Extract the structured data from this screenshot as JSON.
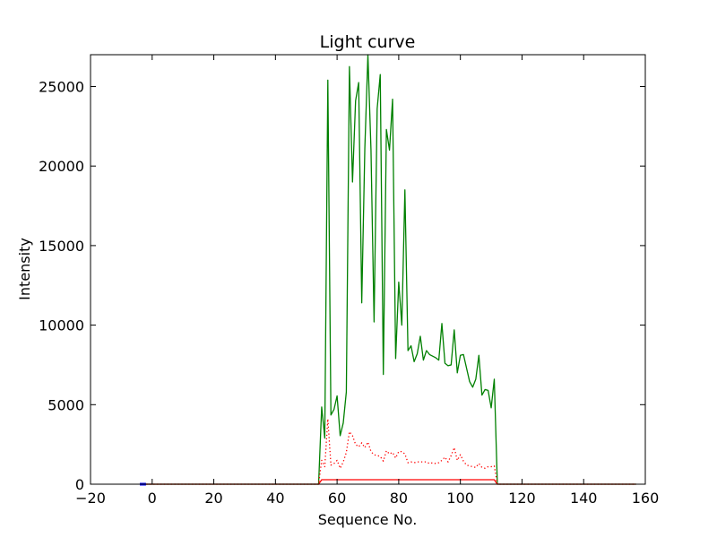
{
  "chart_data": {
    "type": "line",
    "title": "Light curve",
    "xlabel": "Sequence No.",
    "ylabel": "Intensity",
    "xlim": [
      -20,
      160
    ],
    "ylim": [
      0,
      27000
    ],
    "xticks": [
      -20,
      0,
      20,
      40,
      60,
      80,
      100,
      120,
      140,
      160
    ],
    "yticks": [
      0,
      5000,
      10000,
      15000,
      20000,
      25000
    ],
    "xtick_labels": [
      "−20",
      "0",
      "20",
      "40",
      "60",
      "80",
      "100",
      "120",
      "140",
      "160"
    ],
    "ytick_labels": [
      "0",
      "5000",
      "10000",
      "15000",
      "20000",
      "25000"
    ],
    "grid": false,
    "legend": null,
    "series": [
      {
        "color": "#008000",
        "style": "solid",
        "x": [
          -3,
          54,
          55,
          56,
          57,
          58,
          59,
          60,
          61,
          62,
          63,
          64,
          65,
          66,
          67,
          68,
          69,
          70,
          71,
          72,
          73,
          74,
          75,
          76,
          77,
          78,
          79,
          80,
          81,
          82,
          83,
          84,
          85,
          86,
          87,
          88,
          89,
          90,
          91,
          92,
          93,
          94,
          95,
          96,
          97,
          98,
          99,
          100,
          101,
          102,
          103,
          104,
          105,
          106,
          107,
          108,
          109,
          110,
          111,
          112,
          157
        ],
        "y": [
          0,
          0,
          4850,
          2900,
          25400,
          4350,
          4700,
          5550,
          3050,
          3850,
          5800,
          26250,
          19000,
          24100,
          25250,
          11400,
          21100,
          27000,
          21000,
          10200,
          23600,
          25750,
          6900,
          22300,
          21000,
          24200,
          7900,
          12700,
          10000,
          18500,
          8400,
          8700,
          7700,
          8200,
          9300,
          7800,
          8400,
          8150,
          8050,
          7950,
          7800,
          10100,
          7600,
          7450,
          7500,
          9700,
          7000,
          8100,
          8150,
          7300,
          6450,
          6100,
          6600,
          8100,
          5600,
          5950,
          5900,
          4800,
          6600,
          0,
          0
        ]
      },
      {
        "color": "#ff0000",
        "style": "dotted",
        "x": [
          -3,
          54,
          55,
          56,
          57,
          58,
          59,
          60,
          61,
          62,
          63,
          64,
          65,
          66,
          67,
          68,
          69,
          70,
          71,
          72,
          73,
          74,
          75,
          76,
          77,
          78,
          79,
          80,
          81,
          82,
          83,
          84,
          85,
          86,
          87,
          88,
          89,
          90,
          91,
          92,
          93,
          94,
          95,
          96,
          97,
          98,
          99,
          100,
          101,
          102,
          103,
          104,
          105,
          106,
          107,
          108,
          109,
          110,
          111,
          112,
          157
        ],
        "y": [
          0,
          0,
          1500,
          1100,
          4100,
          1200,
          1300,
          1500,
          1000,
          1400,
          2000,
          3300,
          3050,
          2500,
          2350,
          2600,
          2300,
          2650,
          2050,
          1850,
          1800,
          1750,
          1450,
          2100,
          1900,
          2000,
          1650,
          2050,
          2050,
          1900,
          1350,
          1400,
          1350,
          1400,
          1400,
          1400,
          1400,
          1300,
          1350,
          1300,
          1350,
          1500,
          1700,
          1400,
          1800,
          2300,
          1500,
          1850,
          1450,
          1200,
          1150,
          1100,
          1050,
          1300,
          1050,
          1000,
          1100,
          1100,
          1150,
          0,
          0
        ]
      },
      {
        "color": "#ff0000",
        "style": "solid",
        "x": [
          -3,
          54,
          55,
          111,
          112,
          157
        ],
        "y": [
          0,
          0,
          280,
          280,
          0,
          0
        ]
      },
      {
        "color": "#0000ff",
        "style": "solid",
        "x": [
          -4,
          -2
        ],
        "y": [
          0,
          0
        ]
      }
    ]
  }
}
